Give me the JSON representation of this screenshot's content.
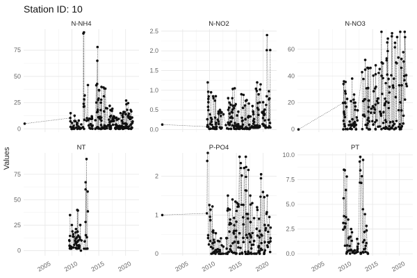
{
  "figure": {
    "title": "Station ID: 10",
    "ylabel": "Values"
  },
  "chart_data": {
    "type": "scatter",
    "facets": "2x3",
    "connector": "dotted",
    "x_ticks": [
      2005,
      2010,
      2015,
      2020
    ],
    "xlim": [
      2001,
      2022.5
    ],
    "panels": [
      {
        "name": "N-NH4",
        "ylim": [
          -3,
          95
        ],
        "yticks": [
          0,
          25,
          50,
          75
        ],
        "ytick_labels": [
          "0",
          "25",
          "50",
          "75"
        ],
        "seed": 11,
        "isolated": [
          [
            2001.2,
            5
          ]
        ],
        "clusters": [
          [
            2009.6,
            2010.7,
            0,
            15,
            18
          ],
          [
            2010.8,
            2011.8,
            0,
            8,
            12
          ],
          [
            2012.0,
            2013.0,
            0,
            92,
            14
          ],
          [
            2013.0,
            2014.2,
            0,
            12,
            15
          ],
          [
            2014.3,
            2015.3,
            0,
            78,
            22
          ],
          [
            2015.3,
            2016.4,
            0,
            40,
            24
          ],
          [
            2016.5,
            2017.6,
            0,
            22,
            20
          ],
          [
            2017.6,
            2018.6,
            0,
            12,
            20
          ],
          [
            2018.6,
            2019.6,
            0,
            15,
            20
          ],
          [
            2019.6,
            2020.6,
            0,
            27,
            22
          ],
          [
            2020.6,
            2021.4,
            0,
            18,
            18
          ]
        ]
      },
      {
        "name": "N-NO2",
        "ylim": [
          -0.06,
          2.55
        ],
        "yticks": [
          0,
          0.5,
          1,
          1.5,
          2,
          2.5
        ],
        "ytick_labels": [
          "0.0",
          "0.5",
          "1.0",
          "1.5",
          "2.0",
          "2.5"
        ],
        "seed": 23,
        "isolated": [
          [
            2001.2,
            0.13
          ]
        ],
        "clusters": [
          [
            2009.5,
            2010.6,
            0.02,
            1.2,
            20
          ],
          [
            2010.6,
            2011.6,
            0.02,
            0.85,
            18
          ],
          [
            2011.6,
            2012.6,
            0.02,
            0.5,
            14
          ],
          [
            2013.0,
            2014.2,
            0.02,
            0.8,
            20
          ],
          [
            2014.2,
            2015.3,
            0.02,
            1.05,
            22
          ],
          [
            2015.3,
            2016.4,
            0.02,
            0.9,
            22
          ],
          [
            2016.4,
            2017.5,
            0.02,
            0.75,
            20
          ],
          [
            2017.5,
            2018.5,
            0.05,
            0.6,
            18
          ],
          [
            2018.5,
            2019.5,
            0.05,
            1.2,
            20
          ],
          [
            2019.5,
            2020.6,
            0.05,
            1.15,
            20
          ],
          [
            2020.6,
            2021.4,
            0.05,
            2.4,
            14
          ]
        ]
      },
      {
        "name": "N-NO3",
        "ylim": [
          -2,
          75
        ],
        "yticks": [
          0,
          20,
          40,
          60
        ],
        "ytick_labels": [
          "0",
          "20",
          "40",
          "60"
        ],
        "seed": 37,
        "isolated": [
          [
            2001.2,
            0
          ]
        ],
        "clusters": [
          [
            2009.5,
            2010.6,
            0,
            36,
            20
          ],
          [
            2010.6,
            2011.6,
            0,
            38,
            18
          ],
          [
            2011.6,
            2012.6,
            0,
            20,
            12
          ],
          [
            2013.0,
            2014.2,
            0,
            52,
            20
          ],
          [
            2014.2,
            2015.3,
            0,
            46,
            20
          ],
          [
            2015.3,
            2016.4,
            0,
            48,
            20
          ],
          [
            2016.4,
            2017.5,
            0,
            73,
            20
          ],
          [
            2017.5,
            2018.5,
            0,
            68,
            20
          ],
          [
            2018.5,
            2019.5,
            0,
            72,
            18
          ],
          [
            2019.5,
            2020.6,
            0,
            73,
            18
          ],
          [
            2020.6,
            2021.4,
            0,
            73,
            12
          ]
        ]
      },
      {
        "name": "NT",
        "ylim": [
          -5,
          96
        ],
        "yticks": [
          0,
          25,
          50,
          75
        ],
        "ytick_labels": [
          "0",
          "25",
          "50",
          "75"
        ],
        "seed": 53,
        "isolated": [],
        "clusters": [
          [
            2009.5,
            2010.5,
            2,
            35,
            24
          ],
          [
            2010.5,
            2011.6,
            2,
            40,
            28
          ],
          [
            2011.6,
            2012.5,
            0,
            10,
            4
          ],
          [
            2012.5,
            2013.0,
            0,
            90,
            10
          ]
        ]
      },
      {
        "name": "P-PO4",
        "ylim": [
          -0.05,
          2.6
        ],
        "yticks": [
          0,
          1,
          2
        ],
        "ytick_labels": [
          "0",
          "1",
          "2"
        ],
        "seed": 71,
        "isolated": [
          [
            2001.2,
            1.0
          ]
        ],
        "clusters": [
          [
            2009.5,
            2010.6,
            0,
            2.6,
            18
          ],
          [
            2010.6,
            2011.6,
            0,
            0.6,
            16
          ],
          [
            2011.6,
            2012.6,
            0,
            0.4,
            12
          ],
          [
            2013.0,
            2014.2,
            0,
            1.5,
            20
          ],
          [
            2014.2,
            2015.3,
            0,
            1.4,
            20
          ],
          [
            2015.3,
            2016.4,
            0,
            2.5,
            20
          ],
          [
            2016.4,
            2017.5,
            0,
            2.5,
            20
          ],
          [
            2017.5,
            2018.5,
            0,
            1.5,
            18
          ],
          [
            2018.5,
            2019.5,
            0,
            1.2,
            18
          ],
          [
            2019.5,
            2020.6,
            0,
            2.05,
            18
          ],
          [
            2020.6,
            2021.4,
            0,
            1.5,
            14
          ]
        ]
      },
      {
        "name": "PT",
        "ylim": [
          -0.2,
          10.2
        ],
        "yticks": [
          0,
          2.5,
          5,
          7.5,
          10
        ],
        "ytick_labels": [
          "0.0",
          "2.5",
          "5.0",
          "7.5",
          "10.0"
        ],
        "seed": 89,
        "isolated": [],
        "clusters": [
          [
            2009.5,
            2010.5,
            0,
            8.5,
            18
          ],
          [
            2010.5,
            2011.6,
            0,
            2.5,
            16
          ],
          [
            2011.6,
            2012.5,
            0,
            1.5,
            10
          ],
          [
            2012.5,
            2013.4,
            0,
            9.8,
            14
          ],
          [
            2013.4,
            2014.2,
            0,
            4.0,
            12
          ]
        ]
      }
    ]
  }
}
